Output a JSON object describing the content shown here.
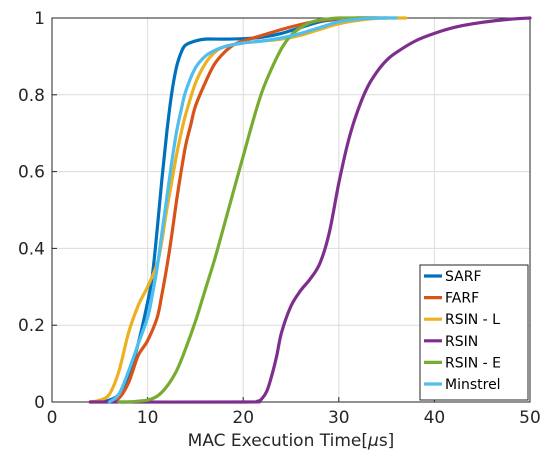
{
  "chart_data": {
    "type": "line",
    "title": "",
    "xlabel_main": "MAC Execution Time[",
    "xlabel_mu": "μ",
    "xlabel_end": "s]",
    "ylabel": "",
    "xlim": [
      0,
      50
    ],
    "ylim": [
      0,
      1
    ],
    "xticks": [
      0,
      10,
      20,
      30,
      40,
      50
    ],
    "yticks": [
      0,
      0.2,
      0.4,
      0.6,
      0.8,
      1
    ],
    "xtick_labels": [
      "0",
      "10",
      "20",
      "30",
      "40",
      "50"
    ],
    "ytick_labels": [
      "0",
      "0.2",
      "0.4",
      "0.6",
      "0.8",
      "1"
    ],
    "grid": true,
    "legend_position": "bottom-right",
    "series": [
      {
        "name": "SARF",
        "color": "#0072BD",
        "x": [
          5,
          6,
          7,
          8,
          9,
          10,
          10.5,
          11,
          11.5,
          12,
          12.5,
          13,
          13.5,
          14,
          15,
          16,
          18,
          20,
          22,
          24,
          26,
          28,
          30,
          32,
          34,
          35
        ],
        "y": [
          0,
          0.005,
          0.02,
          0.07,
          0.15,
          0.26,
          0.33,
          0.45,
          0.58,
          0.7,
          0.8,
          0.87,
          0.91,
          0.93,
          0.94,
          0.945,
          0.945,
          0.946,
          0.95,
          0.96,
          0.975,
          0.99,
          0.997,
          1,
          1,
          1
        ]
      },
      {
        "name": "FARF",
        "color": "#D95319",
        "x": [
          6,
          7,
          8,
          9,
          10,
          11,
          11.5,
          12,
          12.5,
          13,
          13.5,
          14,
          14.5,
          15,
          16,
          17,
          18,
          19,
          20,
          22,
          24,
          26,
          28,
          30,
          32,
          34
        ],
        "y": [
          0,
          0.01,
          0.05,
          0.12,
          0.16,
          0.22,
          0.28,
          0.35,
          0.43,
          0.52,
          0.6,
          0.67,
          0.72,
          0.77,
          0.83,
          0.88,
          0.91,
          0.93,
          0.94,
          0.955,
          0.97,
          0.983,
          0.993,
          0.998,
          1,
          1
        ]
      },
      {
        "name": "RSIN - L",
        "color": "#EDB120",
        "x": [
          4,
          5,
          6,
          7,
          8,
          9,
          10,
          11,
          11.5,
          12,
          12.5,
          13,
          13.5,
          14,
          15,
          16,
          17,
          18,
          20,
          22,
          24,
          26,
          28,
          30,
          33,
          35,
          37
        ],
        "y": [
          0,
          0.005,
          0.02,
          0.08,
          0.18,
          0.25,
          0.3,
          0.36,
          0.42,
          0.5,
          0.57,
          0.64,
          0.7,
          0.75,
          0.83,
          0.88,
          0.91,
          0.925,
          0.935,
          0.94,
          0.945,
          0.955,
          0.97,
          0.985,
          0.997,
          1,
          1
        ]
      },
      {
        "name": "RSIN",
        "color": "#7E2F8E",
        "x": [
          4,
          20,
          21.5,
          22,
          22.5,
          23,
          23.5,
          24,
          25,
          26,
          27,
          28,
          29,
          30,
          31,
          32,
          33,
          34,
          35,
          36,
          38,
          40,
          42,
          44,
          46,
          48,
          50
        ],
        "y": [
          0,
          0,
          0.002,
          0.01,
          0.03,
          0.07,
          0.12,
          0.18,
          0.25,
          0.29,
          0.32,
          0.36,
          0.44,
          0.57,
          0.68,
          0.76,
          0.82,
          0.86,
          0.89,
          0.91,
          0.94,
          0.96,
          0.975,
          0.985,
          0.992,
          0.997,
          1
        ]
      },
      {
        "name": "RSIN - E",
        "color": "#77AC30",
        "x": [
          7,
          8,
          9,
          10,
          11,
          12,
          13,
          14,
          15,
          16,
          17,
          18,
          19,
          20,
          21,
          22,
          23,
          24,
          25,
          26,
          27,
          28,
          29,
          30,
          32,
          34
        ],
        "y": [
          0,
          0,
          0.002,
          0.005,
          0.015,
          0.04,
          0.08,
          0.14,
          0.21,
          0.29,
          0.37,
          0.46,
          0.55,
          0.64,
          0.73,
          0.81,
          0.87,
          0.92,
          0.955,
          0.975,
          0.988,
          0.995,
          0.998,
          1,
          1,
          1
        ]
      },
      {
        "name": "Minstrel",
        "color": "#4DBEEE",
        "x": [
          6,
          7,
          8,
          9,
          10,
          10.5,
          11,
          11.5,
          12,
          12.5,
          13,
          13.5,
          14,
          15,
          16,
          17,
          18,
          20,
          22,
          24,
          26,
          28,
          30,
          32,
          34,
          36
        ],
        "y": [
          0,
          0.02,
          0.08,
          0.15,
          0.22,
          0.28,
          0.35,
          0.44,
          0.53,
          0.62,
          0.7,
          0.76,
          0.81,
          0.87,
          0.9,
          0.915,
          0.925,
          0.935,
          0.94,
          0.948,
          0.96,
          0.975,
          0.99,
          0.997,
          1,
          1
        ]
      }
    ]
  }
}
